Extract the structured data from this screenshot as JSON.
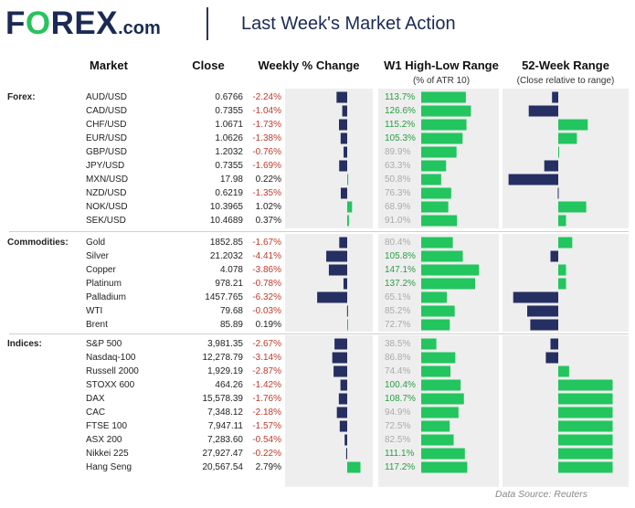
{
  "header": {
    "logo_part1": "F",
    "logo_o": "O",
    "logo_part2": "REX",
    "logo_suffix": ".com",
    "title": "Last Week's Market Action"
  },
  "columns": {
    "market": "Market",
    "close": "Close",
    "weekly": "Weekly % Change",
    "w1": "W1 High-Low Range",
    "w1_sub": "(% of ATR 10)",
    "w52": "52-Week Range",
    "w52_sub": "(Close relative to range)"
  },
  "footer": {
    "source": "Data Source: Reuters"
  },
  "colors": {
    "navy": "#262f61",
    "green": "#22c55e",
    "red_text": "#c0392b",
    "grey_text": "#aaaaaa",
    "green_text": "#2a9d45",
    "panel": "#eeeeee"
  },
  "chart_data": {
    "type": "table",
    "groups": [
      {
        "name": "Forex:",
        "rows": [
          {
            "market": "AUD/USD",
            "close": "0.6766",
            "weekly_pct": -2.24,
            "weekly_text": "-2.24%",
            "w1_pct": 113.7,
            "w1_text": "113.7%",
            "range52": -0.04
          },
          {
            "market": "CAD/USD",
            "close": "0.7355",
            "weekly_pct": -1.04,
            "weekly_text": "-1.04%",
            "w1_pct": 126.6,
            "w1_text": "126.6%",
            "range52": -0.19
          },
          {
            "market": "CHF/USD",
            "close": "1.0671",
            "weekly_pct": -1.73,
            "weekly_text": "-1.73%",
            "w1_pct": 115.2,
            "w1_text": "115.2%",
            "range52": 0.19
          },
          {
            "market": "EUR/USD",
            "close": "1.0626",
            "weekly_pct": -1.38,
            "weekly_text": "-1.38%",
            "w1_pct": 105.3,
            "w1_text": "105.3%",
            "range52": 0.12
          },
          {
            "market": "GBP/USD",
            "close": "1.2032",
            "weekly_pct": -0.76,
            "weekly_text": "-0.76%",
            "w1_pct": 89.9,
            "w1_text": "89.9%",
            "range52": 0.005
          },
          {
            "market": "JPY/USD",
            "close": "0.7355",
            "weekly_pct": -1.69,
            "weekly_text": "-1.69%",
            "w1_pct": 63.3,
            "w1_text": "63.3%",
            "range52": -0.09
          },
          {
            "market": "MXN/USD",
            "close": "17.98",
            "weekly_pct": 0.22,
            "weekly_text": "0.22%",
            "w1_pct": 50.8,
            "w1_text": "50.8%",
            "range52": -0.32
          },
          {
            "market": "NZD/USD",
            "close": "0.6219",
            "weekly_pct": -1.35,
            "weekly_text": "-1.35%",
            "w1_pct": 76.3,
            "w1_text": "76.3%",
            "range52": -0.003
          },
          {
            "market": "NOK/USD",
            "close": "10.3965",
            "weekly_pct": 1.02,
            "weekly_text": "1.02%",
            "w1_pct": 68.9,
            "w1_text": "68.9%",
            "range52": 0.18
          },
          {
            "market": "SEK/USD",
            "close": "10.4689",
            "weekly_pct": 0.37,
            "weekly_text": "0.37%",
            "w1_pct": 91.0,
            "w1_text": "91.0%",
            "range52": 0.05
          }
        ]
      },
      {
        "name": "Commodities:",
        "rows": [
          {
            "market": "Gold",
            "close": "1852.85",
            "weekly_pct": -1.67,
            "weekly_text": "-1.67%",
            "w1_pct": 80.4,
            "w1_text": "80.4%",
            "range52": 0.09
          },
          {
            "market": "Silver",
            "close": "21.2032",
            "weekly_pct": -4.41,
            "weekly_text": "-4.41%",
            "w1_pct": 105.8,
            "w1_text": "105.8%",
            "range52": -0.05
          },
          {
            "market": "Copper",
            "close": "4.078",
            "weekly_pct": -3.86,
            "weekly_text": "-3.86%",
            "w1_pct": 147.1,
            "w1_text": "147.1%",
            "range52": 0.05
          },
          {
            "market": "Platinum",
            "close": "978.21",
            "weekly_pct": -0.78,
            "weekly_text": "-0.78%",
            "w1_pct": 137.2,
            "w1_text": "137.2%",
            "range52": 0.05
          },
          {
            "market": "Palladium",
            "close": "1457.765",
            "weekly_pct": -6.32,
            "weekly_text": "-6.32%",
            "w1_pct": 65.1,
            "w1_text": "65.1%",
            "range52": -0.29
          },
          {
            "market": "WTI",
            "close": "79.68",
            "weekly_pct": -0.03,
            "weekly_text": "-0.03%",
            "w1_pct": 85.2,
            "w1_text": "85.2%",
            "range52": -0.2
          },
          {
            "market": "Brent",
            "close": "85.89",
            "weekly_pct": 0.19,
            "weekly_text": "0.19%",
            "w1_pct": 72.7,
            "w1_text": "72.7%",
            "range52": -0.18
          }
        ]
      },
      {
        "name": "Indices:",
        "rows": [
          {
            "market": "S&P 500",
            "close": "3,981.35",
            "weekly_pct": -2.67,
            "weekly_text": "-2.67%",
            "w1_pct": 38.5,
            "w1_text": "38.5%",
            "range52": -0.05
          },
          {
            "market": "Nasdaq-100",
            "close": "12,278.79",
            "weekly_pct": -3.14,
            "weekly_text": "-3.14%",
            "w1_pct": 86.8,
            "w1_text": "86.8%",
            "range52": -0.08
          },
          {
            "market": "Russell 2000",
            "close": "1,929.19",
            "weekly_pct": -2.87,
            "weekly_text": "-2.87%",
            "w1_pct": 74.4,
            "w1_text": "74.4%",
            "range52": 0.07
          },
          {
            "market": "STOXX 600",
            "close": "464.26",
            "weekly_pct": -1.42,
            "weekly_text": "-1.42%",
            "w1_pct": 100.4,
            "w1_text": "100.4%",
            "range52": 0.35
          },
          {
            "market": "DAX",
            "close": "15,578.39",
            "weekly_pct": -1.76,
            "weekly_text": "-1.76%",
            "w1_pct": 108.7,
            "w1_text": "108.7%",
            "range52": 0.35
          },
          {
            "market": "CAC",
            "close": "7,348.12",
            "weekly_pct": -2.18,
            "weekly_text": "-2.18%",
            "w1_pct": 94.9,
            "w1_text": "94.9%",
            "range52": 0.35
          },
          {
            "market": "FTSE 100",
            "close": "7,947.11",
            "weekly_pct": -1.57,
            "weekly_text": "-1.57%",
            "w1_pct": 72.5,
            "w1_text": "72.5%",
            "range52": 0.35
          },
          {
            "market": "ASX 200",
            "close": "7,283.60",
            "weekly_pct": -0.54,
            "weekly_text": "-0.54%",
            "w1_pct": 82.5,
            "w1_text": "82.5%",
            "range52": 0.35
          },
          {
            "market": "Nikkei 225",
            "close": "27,927.47",
            "weekly_pct": -0.22,
            "weekly_text": "-0.22%",
            "w1_pct": 111.1,
            "w1_text": "111.1%",
            "range52": 0.35
          },
          {
            "market": "Hang Seng",
            "close": "20,567.54",
            "weekly_pct": 2.79,
            "weekly_text": "2.79%",
            "w1_pct": 117.2,
            "w1_text": "117.2%",
            "range52": 0.35
          }
        ]
      }
    ]
  }
}
